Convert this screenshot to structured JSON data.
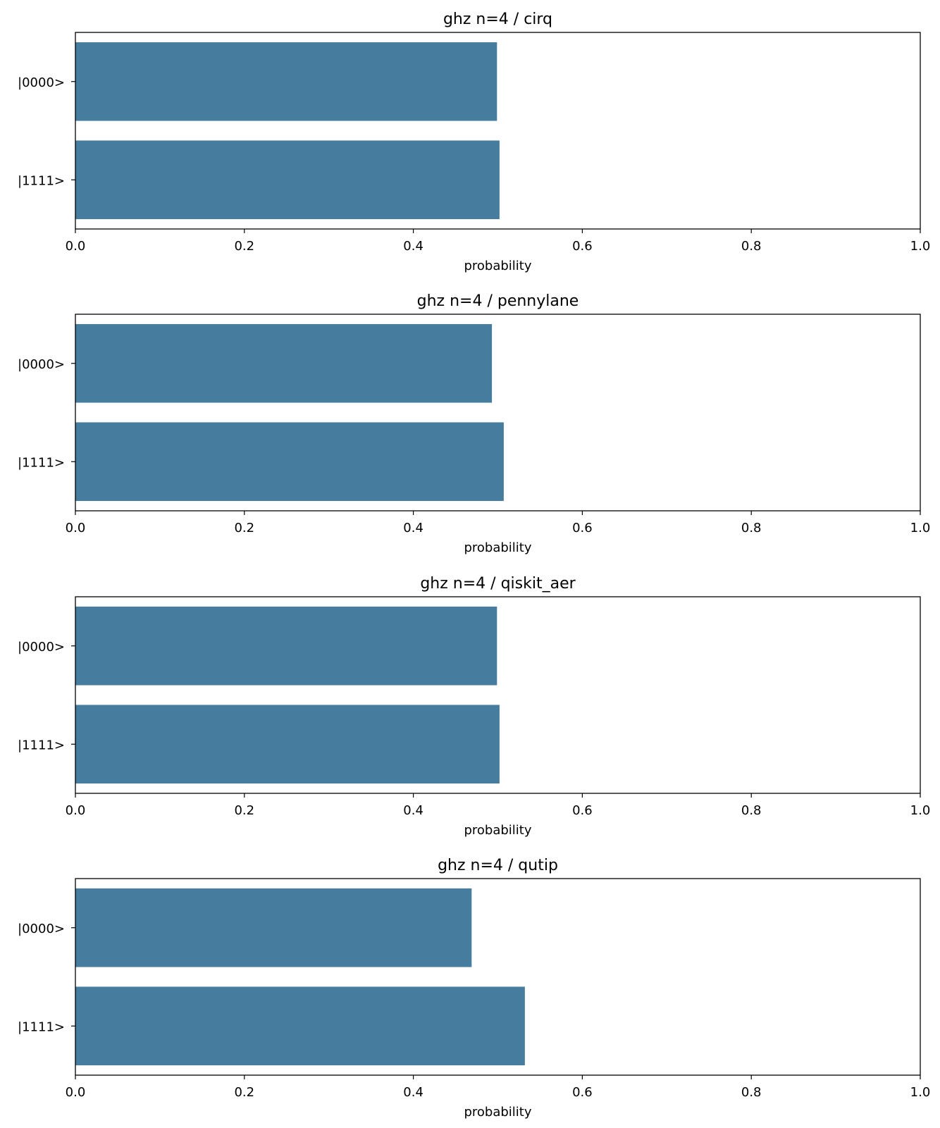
{
  "chart_data": [
    {
      "type": "bar",
      "orientation": "horizontal",
      "title": "ghz n=4 / cirq",
      "xlabel": "probability",
      "ylabel": "",
      "categories": [
        "|0000>",
        "|1111>"
      ],
      "values": [
        0.499,
        0.502
      ],
      "xlim": [
        0,
        1
      ],
      "xticks": [
        "0.0",
        "0.2",
        "0.4",
        "0.6",
        "0.8",
        "1.0"
      ],
      "bar_color": "#467c9e",
      "grid": false
    },
    {
      "type": "bar",
      "orientation": "horizontal",
      "title": "ghz n=4 / pennylane",
      "xlabel": "probability",
      "ylabel": "",
      "categories": [
        "|0000>",
        "|1111>"
      ],
      "values": [
        0.493,
        0.507
      ],
      "xlim": [
        0,
        1
      ],
      "xticks": [
        "0.0",
        "0.2",
        "0.4",
        "0.6",
        "0.8",
        "1.0"
      ],
      "bar_color": "#467c9e",
      "grid": false
    },
    {
      "type": "bar",
      "orientation": "horizontal",
      "title": "ghz n=4 / qiskit_aer",
      "xlabel": "probability",
      "ylabel": "",
      "categories": [
        "|0000>",
        "|1111>"
      ],
      "values": [
        0.499,
        0.502
      ],
      "xlim": [
        0,
        1
      ],
      "xticks": [
        "0.0",
        "0.2",
        "0.4",
        "0.6",
        "0.8",
        "1.0"
      ],
      "bar_color": "#467c9e",
      "grid": false
    },
    {
      "type": "bar",
      "orientation": "horizontal",
      "title": "ghz n=4 / qutip",
      "xlabel": "probability",
      "ylabel": "",
      "categories": [
        "|0000>",
        "|1111>"
      ],
      "values": [
        0.469,
        0.532
      ],
      "xlim": [
        0,
        1
      ],
      "xticks": [
        "0.0",
        "0.2",
        "0.4",
        "0.6",
        "0.8",
        "1.0"
      ],
      "bar_color": "#467c9e",
      "grid": false
    }
  ]
}
